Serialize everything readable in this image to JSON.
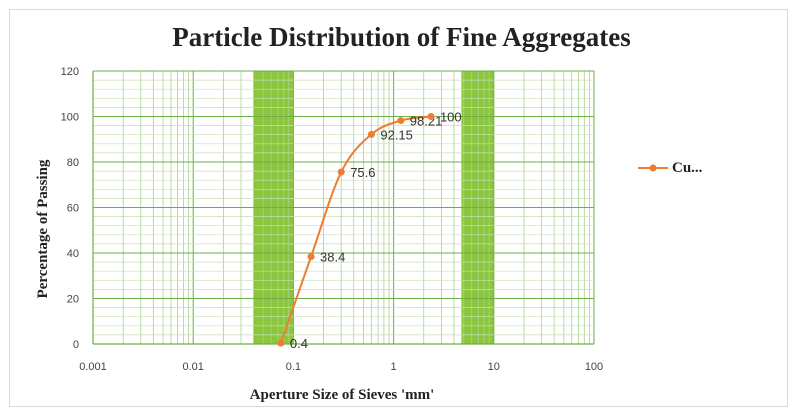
{
  "chart_data": {
    "type": "line",
    "title": "Particle Distribution of Fine Aggregates",
    "xlabel": "Aperture Size of Sieves 'mm'",
    "ylabel": "Percentage of Passing",
    "x_scale": "log",
    "xlim": [
      0.001,
      100
    ],
    "ylim": [
      0,
      120
    ],
    "x_ticks": [
      "0.001",
      "0.01",
      "0.1",
      "1",
      "10",
      "100"
    ],
    "y_ticks": [
      "0",
      "20",
      "40",
      "60",
      "80",
      "100",
      "120"
    ],
    "grid": true,
    "legend_position": "right",
    "shaded_bands": [
      {
        "from": 0.04,
        "to": 0.1,
        "color": "#8cc63f"
      },
      {
        "from": 4.75,
        "to": 10,
        "color": "#8cc63f"
      }
    ],
    "series": [
      {
        "name": "Cu...",
        "color": "#ed7d31",
        "x": [
          0.075,
          0.15,
          0.3,
          0.6,
          1.18,
          2.36
        ],
        "y": [
          0.4,
          38.4,
          75.6,
          92.15,
          98.21,
          100
        ],
        "labels": [
          "0.4",
          "38.4",
          "75.6",
          "92.15",
          "98.21",
          "100"
        ]
      }
    ]
  }
}
